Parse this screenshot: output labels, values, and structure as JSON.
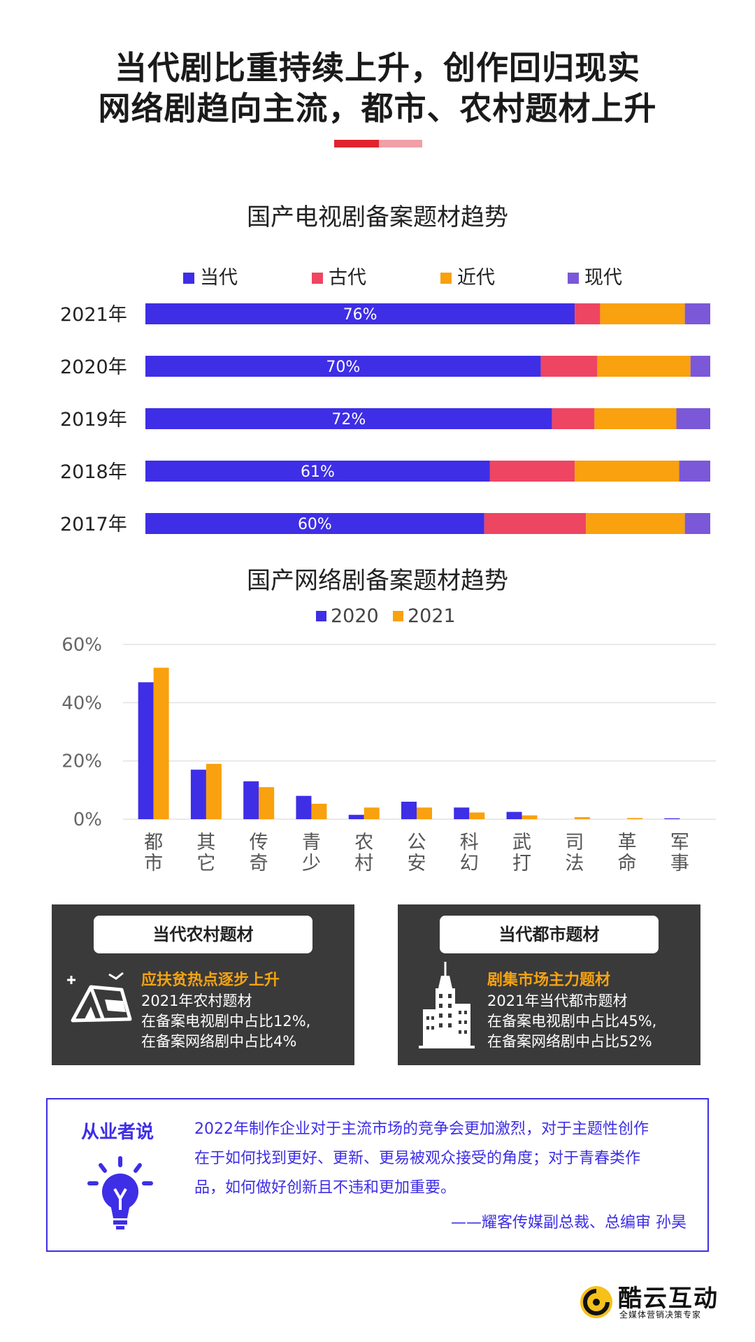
{
  "header": {
    "title_line1": "当代剧比重持续上升，创作回归现实",
    "title_line2": "网络剧趋向主流，都市、农村题材上升"
  },
  "chart_data": [
    {
      "type": "bar",
      "orientation": "horizontal",
      "stacked": true,
      "title": "国产电视剧备案题材趋势",
      "categories": [
        "2021年",
        "2020年",
        "2019年",
        "2018年",
        "2017年"
      ],
      "series": [
        {
          "name": "当代",
          "color": "#3e2ee6",
          "values": [
            76,
            70,
            72,
            61,
            60
          ],
          "labels": [
            "76%",
            "70%",
            "72%",
            "61%",
            "60%"
          ]
        },
        {
          "name": "古代",
          "color": "#ee4562",
          "values": [
            4.5,
            10,
            7.5,
            15,
            18
          ]
        },
        {
          "name": "近代",
          "color": "#f9a10e",
          "values": [
            15,
            16.5,
            14.5,
            18.5,
            17.5
          ]
        },
        {
          "name": "现代",
          "color": "#7a58d8",
          "values": [
            4.5,
            3.5,
            6,
            5.5,
            4.5
          ]
        }
      ],
      "xlim": [
        0,
        100
      ],
      "legend_position": "top"
    },
    {
      "type": "bar",
      "title": "国产网络剧备案题材趋势",
      "categories": [
        "都市",
        "其它",
        "传奇",
        "青少",
        "农村",
        "公安",
        "科幻",
        "武打",
        "司法",
        "革命",
        "军事"
      ],
      "series": [
        {
          "name": "2020",
          "color": "#3e2ee6",
          "values": [
            47,
            17,
            13,
            8,
            1.5,
            6,
            4,
            2.5,
            0,
            0,
            0.3
          ]
        },
        {
          "name": "2021",
          "color": "#f9a10e",
          "values": [
            52,
            19,
            11,
            5.3,
            4,
            4,
            2.3,
            1.3,
            0.7,
            0.4,
            0
          ]
        }
      ],
      "yticks": [
        "0%",
        "20%",
        "40%",
        "60%"
      ],
      "ylim": [
        0,
        60
      ],
      "grid": true,
      "legend_position": "top"
    }
  ],
  "cards": [
    {
      "heading": "当代农村题材",
      "highlight": "应扶贫热点逐步上升",
      "lines": [
        "2021年农村题材",
        "在备案电视剧中占比12%,",
        "在备案网络剧中占比4%"
      ],
      "icon": "tent-icon"
    },
    {
      "heading": "当代都市题材",
      "highlight": "剧集市场主力题材",
      "lines": [
        "2021年当代都市题材",
        "在备案电视剧中占比45%,",
        "在备案网络剧中占比52%"
      ],
      "icon": "skyscraper-icon"
    }
  ],
  "quote": {
    "heading": "从业者说",
    "lines": [
      "2022年制作企业对于主流市场的竞争会更加激烈，对于主题性创作",
      "在于如何找到更好、更新、更易被观众接受的角度；对于青春类作",
      "品，如何做好创新且不违和更加重要。"
    ],
    "author": "——耀客传媒副总裁、总编审  孙昊",
    "icon": "lightbulb-icon"
  },
  "brand": {
    "name": "酷云互动",
    "slogan": "全媒体营销决策专家",
    "icon": "logo-icon"
  },
  "colors": {
    "accent_red": "#e0242f",
    "accent_pink": "#f0a0a6",
    "brand_blue": "#3e2ee6",
    "orange": "#f9a10e",
    "card_bg": "#3a3a3a"
  }
}
